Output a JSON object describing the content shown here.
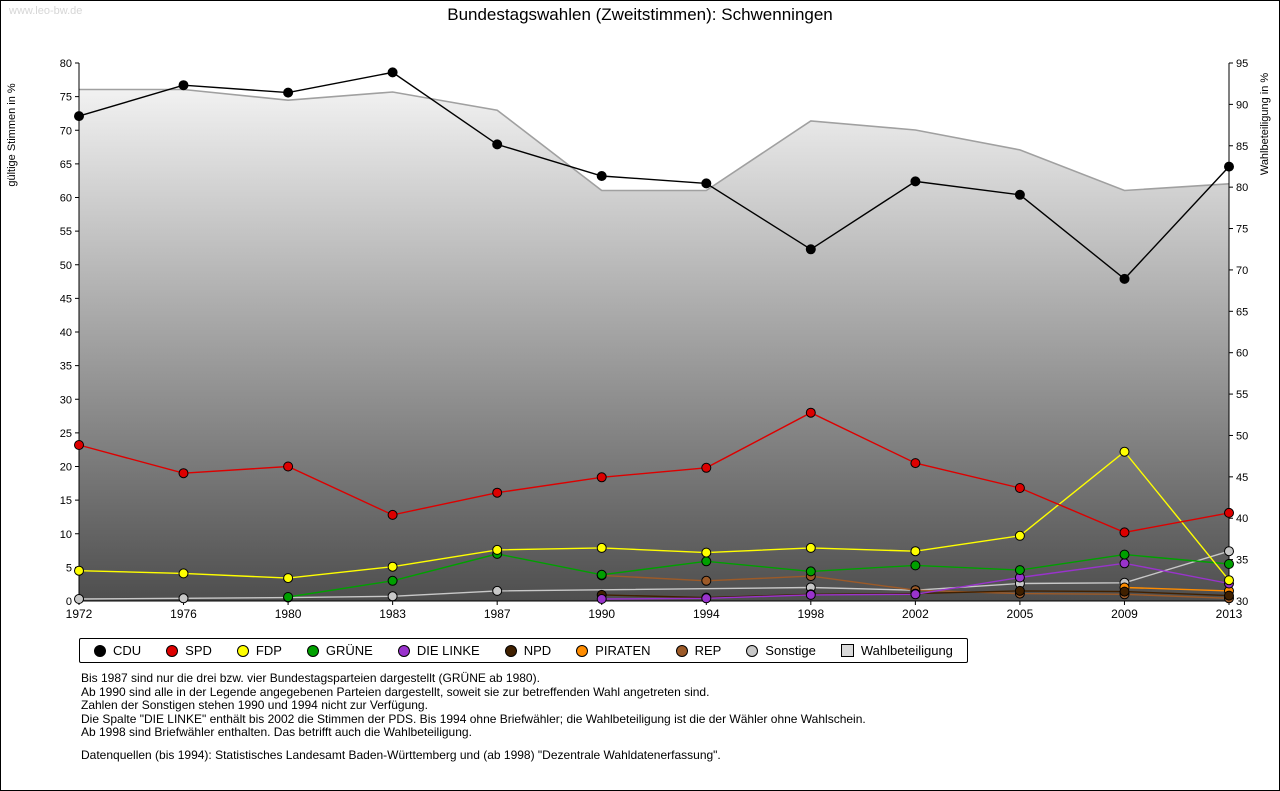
{
  "watermark": "www.leo-bw.de",
  "title": "Bundestagswahlen (Zweitstimmen): Schwenningen",
  "chart_data": {
    "type": "line",
    "categories": [
      "1972",
      "1976",
      "1980",
      "1983",
      "1987",
      "1990",
      "1994",
      "1998",
      "2002",
      "2005",
      "2009",
      "2013"
    ],
    "left_axis": {
      "label": "gültige Stimmen in %",
      "min": 0,
      "max": 80,
      "step": 5
    },
    "right_axis": {
      "label": "Wahlbeteiligung in %",
      "min": 30,
      "max": 95,
      "step": 5
    },
    "grid": false,
    "legend_position": "bottom",
    "series": [
      {
        "name": "CDU",
        "color": "#000000",
        "axis": "left",
        "values": [
          72.1,
          76.7,
          75.6,
          78.6,
          67.9,
          63.2,
          62.1,
          52.3,
          62.4,
          60.4,
          47.9,
          64.6
        ]
      },
      {
        "name": "SPD",
        "color": "#dd0000",
        "axis": "left",
        "values": [
          23.2,
          19.0,
          20.0,
          12.8,
          16.1,
          18.4,
          19.8,
          28.0,
          20.5,
          16.8,
          10.2,
          13.1
        ]
      },
      {
        "name": "FDP",
        "color": "#ffff00",
        "axis": "left",
        "values": [
          4.5,
          4.1,
          3.4,
          5.1,
          7.6,
          7.9,
          7.2,
          7.9,
          7.4,
          9.7,
          22.2,
          3.1
        ]
      },
      {
        "name": "GRÜNE",
        "color": "#00a000",
        "axis": "left",
        "values": [
          null,
          null,
          0.6,
          3.0,
          7.0,
          3.9,
          5.9,
          4.4,
          5.3,
          4.6,
          6.9,
          5.5
        ]
      },
      {
        "name": "DIE LINKE",
        "color": "#9933cc",
        "axis": "left",
        "values": [
          null,
          null,
          null,
          null,
          null,
          0.3,
          0.4,
          0.9,
          1.0,
          3.5,
          5.6,
          2.6
        ]
      },
      {
        "name": "NPD",
        "color": "#402000",
        "axis": "left",
        "values": [
          null,
          null,
          null,
          null,
          null,
          0.9,
          0.5,
          1.0,
          1.1,
          1.5,
          1.4,
          0.8
        ]
      },
      {
        "name": "PIRATEN",
        "color": "#ff8c00",
        "axis": "left",
        "values": [
          null,
          null,
          null,
          null,
          null,
          null,
          null,
          null,
          null,
          null,
          2.0,
          1.5
        ]
      },
      {
        "name": "REP",
        "color": "#9c5a28",
        "axis": "left",
        "values": [
          null,
          null,
          null,
          null,
          null,
          3.8,
          3.0,
          3.7,
          1.6,
          1.1,
          1.0,
          0.4
        ]
      },
      {
        "name": "Sonstige",
        "color": "#c8c8c8",
        "axis": "left",
        "values": [
          0.3,
          0.4,
          0.5,
          0.7,
          1.5,
          null,
          null,
          2.0,
          1.6,
          2.6,
          2.7,
          7.4
        ]
      },
      {
        "name": "Wahlbeteiligung",
        "color": "#a0a0a0",
        "axis": "right",
        "type": "area",
        "values": [
          91.8,
          91.8,
          90.5,
          91.5,
          89.3,
          79.6,
          79.6,
          88.0,
          86.9,
          84.5,
          79.6,
          80.4
        ]
      }
    ],
    "area_gradient": {
      "top": "#fafafa",
      "bottom": "#4e4e4e"
    }
  },
  "notes": [
    "Bis 1987 sind nur die drei bzw. vier Bundestagsparteien dargestellt (GRÜNE ab 1980).",
    "Ab 1990 sind alle in der Legende angegebenen Parteien dargestellt, soweit sie zur betreffenden Wahl angetreten sind.",
    "Zahlen der Sonstigen stehen 1990 und 1994 nicht zur Verfügung.",
    "Die Spalte \"DIE LINKE\" enthält bis 2002 die Stimmen der PDS. Bis 1994 ohne Briefwähler; die Wahlbeteiligung ist die der Wähler ohne Wahlschein.",
    "Ab 1998 sind Briefwähler enthalten. Das betrifft auch die Wahlbeteiligung."
  ],
  "source": "Datenquellen (bis 1994): Statistisches Landesamt Baden-Württemberg und (ab 1998) \"Dezentrale Wahldatenerfassung\"."
}
